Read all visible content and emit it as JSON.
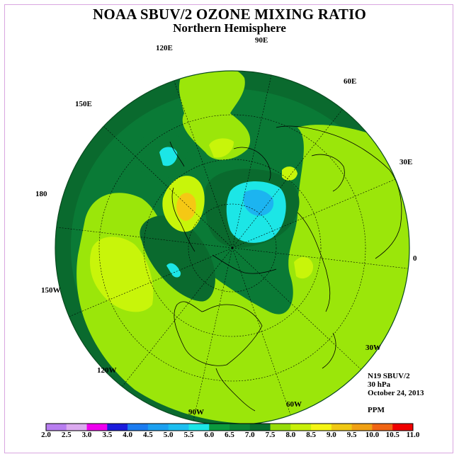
{
  "header": {
    "title": "NOAA SBUV/2 OZONE MIXING RATIO",
    "subtitle": "Northern Hemisphere"
  },
  "longitude_labels": [
    "90E",
    "60E",
    "30E",
    "0",
    "30W",
    "60W",
    "90W",
    "120W",
    "150W",
    "180",
    "150E",
    "120E"
  ],
  "info": {
    "instrument": "N19 SBUV/2",
    "level": "30 hPa",
    "date": "October 24, 2013",
    "units": "PPM"
  },
  "colorbar": {
    "labels": [
      "2.0",
      "2.5",
      "3.0",
      "3.5",
      "4.0",
      "4.5",
      "5.0",
      "5.5",
      "6.0",
      "6.5",
      "7.0",
      "7.5",
      "8.0",
      "8.5",
      "9.0",
      "9.5",
      "10.0",
      "10.5",
      "11.0"
    ],
    "colors": [
      "#b87ef0",
      "#dcaaf0",
      "#ee00ee",
      "#1c1cdc",
      "#1c7cf0",
      "#1ca0f0",
      "#1cbef0",
      "#1ce6e6",
      "#0a9a3e",
      "#0a8436",
      "#086e2e",
      "#96dc0a",
      "#c8f00a",
      "#f5f514",
      "#f0c814",
      "#f0a014",
      "#f06414",
      "#f00000",
      "#8c5a3c"
    ]
  },
  "map_colors": {
    "ocean_green": "#0a7a36",
    "dark_green": "#0a6a2e",
    "yellow_green": "#9be60a",
    "lime": "#c8f50a",
    "cyan": "#1ce6e6",
    "blue": "#1cb4f0",
    "orange": "#f5c814",
    "coast": "#000000"
  }
}
